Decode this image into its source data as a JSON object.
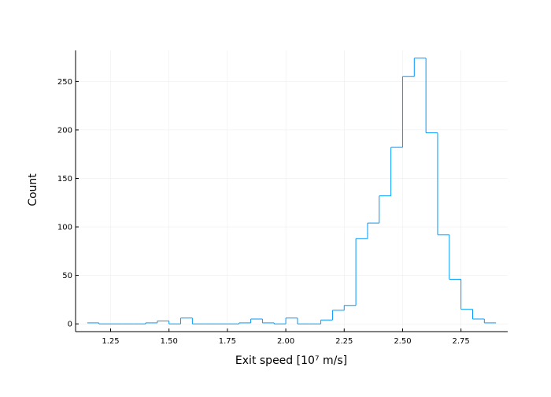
{
  "chart_data": {
    "type": "histogram",
    "xlabel": "Exit speed [10⁷ m/s]",
    "ylabel": "Count",
    "xlim": [
      1.1,
      2.95
    ],
    "ylim": [
      -8,
      282
    ],
    "grid": true,
    "legend": "none",
    "x_ticks": [
      1.25,
      1.5,
      1.75,
      2.0,
      2.25,
      2.5,
      2.75
    ],
    "x_tick_labels": [
      "1.25",
      "1.50",
      "1.75",
      "2.00",
      "2.25",
      "2.50",
      "2.75"
    ],
    "y_ticks": [
      0,
      50,
      100,
      150,
      200,
      250
    ],
    "y_tick_labels": [
      "0",
      "50",
      "100",
      "150",
      "200",
      "250"
    ],
    "bin_edges": [
      1.15,
      1.2,
      1.25,
      1.3,
      1.35,
      1.4,
      1.45,
      1.5,
      1.55,
      1.6,
      1.65,
      1.7,
      1.75,
      1.8,
      1.85,
      1.9,
      1.95,
      2.0,
      2.05,
      2.1,
      2.15,
      2.2,
      2.25,
      2.3,
      2.35,
      2.4,
      2.45,
      2.5,
      2.55,
      2.6,
      2.65,
      2.7,
      2.75,
      2.8,
      2.85,
      2.9
    ],
    "counts": [
      1,
      0,
      0,
      0,
      0,
      1,
      3,
      0,
      6,
      0,
      0,
      0,
      0,
      1,
      5,
      1,
      0,
      6,
      0,
      0,
      4,
      14,
      19,
      88,
      104,
      132,
      182,
      255,
      274,
      197,
      92,
      46,
      15,
      5,
      1
    ],
    "series_color": "#009AFA",
    "grid_color": "#EBEBEB",
    "axis_color": "#000000"
  }
}
